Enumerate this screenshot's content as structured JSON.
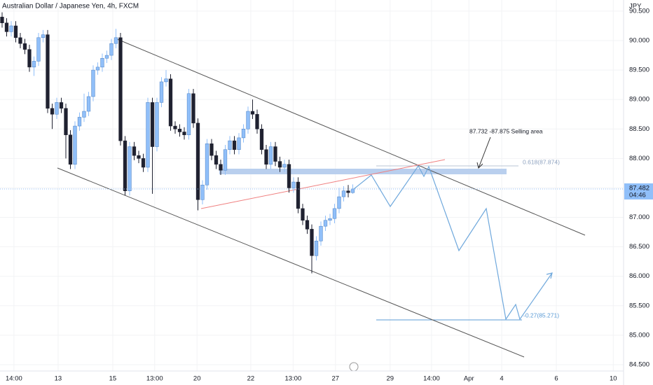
{
  "chart_data": {
    "type": "candlestick",
    "title": "Australian Dollar / Japanese Yen, 4h, FXCM",
    "currency": "JPY",
    "x": [
      0,
      1,
      2,
      3,
      4,
      5,
      6,
      7,
      8,
      9,
      10,
      11,
      12,
      13,
      14,
      15,
      16,
      17,
      18,
      19,
      20,
      21,
      22,
      23,
      24,
      25,
      26,
      27,
      28,
      29,
      30,
      31,
      32,
      33,
      34,
      35,
      36,
      37,
      38,
      39,
      40,
      41,
      42,
      43,
      44,
      45,
      46,
      47,
      48,
      49,
      50,
      51,
      52,
      53,
      54,
      55,
      56,
      57,
      58,
      59,
      60,
      61,
      62,
      63,
      64,
      65,
      66,
      67,
      68,
      69,
      70,
      71,
      72,
      73,
      74,
      75,
      76,
      77
    ],
    "open": [
      90.4,
      90.3,
      90.15,
      90.25,
      90.05,
      89.95,
      89.85,
      89.55,
      89.65,
      90.05,
      90.1,
      88.85,
      88.75,
      88.95,
      88.85,
      88.4,
      87.9,
      88.55,
      88.7,
      88.8,
      89.05,
      89.5,
      89.55,
      89.7,
      89.75,
      89.95,
      90.05,
      88.3,
      87.45,
      88.2,
      88.05,
      88.0,
      87.85,
      88.95,
      88.2,
      88.95,
      89.3,
      89.35,
      88.55,
      88.5,
      88.45,
      88.4,
      89.1,
      88.6,
      87.3,
      87.55,
      88.25,
      88.05,
      87.9,
      87.8,
      88.15,
      88.3,
      88.15,
      88.35,
      88.5,
      88.8,
      88.75,
      88.5,
      88.15,
      87.9,
      88.2,
      87.95,
      87.85,
      87.9,
      87.5,
      87.6,
      87.15,
      86.95,
      86.8,
      86.35,
      86.6,
      86.85,
      86.95,
      86.98,
      87.15,
      87.35,
      87.45,
      87.42
    ],
    "high": [
      90.48,
      90.38,
      90.33,
      90.33,
      90.13,
      90.03,
      89.93,
      89.73,
      90.13,
      90.18,
      90.18,
      88.93,
      89.03,
      89.03,
      88.93,
      88.48,
      88.63,
      88.78,
      89.1,
      89.13,
      89.58,
      89.63,
      89.78,
      89.83,
      90.03,
      90.2,
      90.13,
      88.38,
      88.28,
      88.28,
      88.13,
      88.08,
      89.03,
      89.03,
      89.03,
      89.38,
      89.5,
      89.43,
      88.63,
      88.58,
      88.53,
      89.18,
      89.18,
      88.68,
      87.63,
      88.33,
      88.33,
      88.13,
      87.98,
      88.23,
      88.38,
      88.38,
      88.43,
      88.58,
      88.88,
      89.0,
      88.83,
      88.58,
      88.23,
      88.28,
      88.28,
      88.03,
      87.98,
      87.98,
      87.68,
      87.68,
      87.23,
      87.03,
      86.88,
      86.68,
      86.93,
      87.03,
      87.06,
      87.23,
      87.5,
      87.53,
      87.55,
      87.56
    ],
    "low": [
      90.22,
      90.07,
      90.07,
      89.97,
      89.87,
      89.77,
      89.47,
      89.4,
      89.57,
      89.97,
      88.77,
      88.5,
      88.67,
      88.77,
      88.0,
      87.82,
      87.82,
      88.47,
      88.62,
      88.72,
      88.97,
      89.42,
      89.47,
      89.62,
      89.67,
      89.87,
      88.22,
      87.37,
      87.37,
      87.97,
      87.92,
      87.77,
      87.77,
      87.4,
      88.12,
      88.87,
      89.22,
      88.47,
      88.42,
      88.37,
      88.32,
      88.32,
      88.52,
      87.12,
      87.22,
      87.47,
      87.97,
      87.82,
      87.72,
      87.72,
      88.07,
      88.07,
      88.07,
      88.27,
      88.42,
      88.67,
      88.42,
      88.07,
      87.82,
      87.82,
      87.87,
      87.77,
      87.77,
      87.42,
      87.42,
      87.07,
      86.87,
      86.72,
      86.05,
      86.27,
      86.52,
      86.77,
      86.87,
      86.9,
      87.07,
      87.27,
      87.34,
      87.4
    ],
    "close": [
      90.3,
      90.15,
      90.25,
      90.05,
      89.95,
      89.85,
      89.55,
      89.65,
      90.05,
      90.1,
      88.85,
      88.75,
      88.95,
      88.85,
      88.4,
      87.9,
      88.55,
      88.7,
      88.8,
      89.05,
      89.5,
      89.55,
      89.7,
      89.75,
      89.95,
      90.05,
      88.3,
      87.45,
      88.2,
      88.05,
      88.0,
      87.85,
      88.95,
      88.2,
      88.95,
      89.3,
      89.35,
      88.55,
      88.5,
      88.45,
      88.4,
      89.1,
      88.6,
      87.3,
      87.55,
      88.25,
      88.05,
      87.9,
      87.8,
      88.15,
      88.3,
      88.15,
      88.35,
      88.5,
      88.8,
      88.75,
      88.5,
      88.15,
      87.9,
      88.2,
      87.95,
      87.85,
      87.9,
      87.5,
      87.6,
      87.15,
      86.95,
      86.8,
      86.35,
      86.6,
      86.85,
      86.95,
      86.98,
      87.15,
      87.35,
      87.45,
      87.42,
      87.482
    ],
    "up_color": "#90bff9",
    "down_color": "#1f2130",
    "xlim": [
      -0.46,
      136.46
    ],
    "ylim": [
      84.393,
      90.689
    ],
    "xticks": [
      {
        "value": 2.6,
        "label": "14:00"
      },
      {
        "value": 12.3,
        "label": "13"
      },
      {
        "value": 24.3,
        "label": "15"
      },
      {
        "value": 33.5,
        "label": "13:00"
      },
      {
        "value": 42.8,
        "label": "20"
      },
      {
        "value": 54.6,
        "label": "22"
      },
      {
        "value": 63.9,
        "label": "13:00"
      },
      {
        "value": 73.2,
        "label": "27"
      },
      {
        "value": 85.2,
        "label": "29"
      },
      {
        "value": 94.3,
        "label": "14:00"
      },
      {
        "value": 102.5,
        "label": "Apr"
      },
      {
        "value": 109.7,
        "label": "4"
      },
      {
        "value": 121.7,
        "label": "6"
      },
      {
        "value": 134.2,
        "label": "10"
      }
    ],
    "yticks": [
      {
        "value": 84.5,
        "label": "84.500"
      },
      {
        "value": 85,
        "label": "85.000"
      },
      {
        "value": 85.5,
        "label": "85.500"
      },
      {
        "value": 86,
        "label": "86.000"
      },
      {
        "value": 86.5,
        "label": "86.500"
      },
      {
        "value": 87,
        "label": "87.000"
      },
      {
        "value": 87.5,
        "label": "87.500"
      },
      {
        "value": 88,
        "label": "88.000"
      },
      {
        "value": 88.5,
        "label": "88.500"
      },
      {
        "value": 89,
        "label": "89.000"
      },
      {
        "value": 89.5,
        "label": "89.500"
      },
      {
        "value": 90,
        "label": "90.000"
      },
      {
        "value": 90.5,
        "label": "90.500"
      }
    ],
    "grid": true,
    "last_price": 87.482,
    "countdown": "04:46",
    "annotations": [
      "87.732 -87.875 Selling area",
      "0.618(87.874)",
      "-0.27(85.271)"
    ]
  }
}
